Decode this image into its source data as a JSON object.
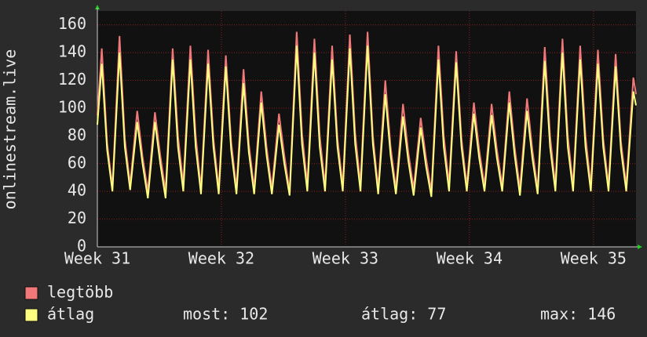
{
  "chart_data": {
    "type": "line",
    "y_label": "onlinestream.live",
    "xlim": [
      0,
      30.4
    ],
    "xticks": [
      {
        "value": 0,
        "label": "Week 31"
      },
      {
        "value": 7,
        "label": "Week 32"
      },
      {
        "value": 14,
        "label": "Week 33"
      },
      {
        "value": 21,
        "label": "Week 34"
      },
      {
        "value": 28,
        "label": "Week 35"
      }
    ],
    "ylim": [
      0,
      170
    ],
    "yticks": [
      0,
      20,
      40,
      60,
      80,
      100,
      120,
      140,
      160
    ],
    "grid": true,
    "x": [
      0,
      0.25,
      0.55,
      0.85,
      1.25,
      1.55,
      1.85,
      2.25,
      2.55,
      2.85,
      3.25,
      3.55,
      3.85,
      4.25,
      4.55,
      4.85,
      5.25,
      5.55,
      5.85,
      6.25,
      6.55,
      6.85,
      7.25,
      7.55,
      7.85,
      8.25,
      8.55,
      8.85,
      9.25,
      9.55,
      9.85,
      10.25,
      10.55,
      10.85,
      11.25,
      11.55,
      11.85,
      12.25,
      12.55,
      12.85,
      13.25,
      13.55,
      13.85,
      14.25,
      14.55,
      14.85,
      15.25,
      15.55,
      15.85,
      16.25,
      16.55,
      16.85,
      17.25,
      17.55,
      17.85,
      18.25,
      18.55,
      18.85,
      19.25,
      19.55,
      19.85,
      20.25,
      20.55,
      20.85,
      21.25,
      21.55,
      21.85,
      22.25,
      22.55,
      22.85,
      23.25,
      23.55,
      23.85,
      24.25,
      24.55,
      24.85,
      25.25,
      25.55,
      25.85,
      26.25,
      26.55,
      26.85,
      27.25,
      27.55,
      27.85,
      28.25,
      28.55,
      28.85,
      29.25,
      29.55,
      29.85,
      30.25,
      30.4
    ],
    "series": [
      {
        "name": "legtöbb",
        "color": "#f07878",
        "values": [
          95,
          143,
          75,
          43,
          152,
          78,
          45,
          98,
          65,
          40,
          97,
          66,
          40,
          143,
          80,
          45,
          145,
          80,
          42,
          142,
          78,
          42,
          138,
          76,
          42,
          128,
          74,
          42,
          112,
          72,
          42,
          96,
          66,
          40,
          155,
          82,
          45,
          150,
          80,
          44,
          145,
          78,
          44,
          153,
          82,
          45,
          155,
          80,
          42,
          120,
          72,
          42,
          103,
          68,
          42,
          93,
          64,
          40,
          145,
          80,
          45,
          141,
          78,
          44,
          104,
          70,
          44,
          103,
          70,
          44,
          112,
          72,
          42,
          107,
          70,
          42,
          144,
          80,
          44,
          150,
          80,
          44,
          145,
          80,
          44,
          142,
          78,
          44,
          139,
          76,
          44,
          122,
          110
        ]
      },
      {
        "name": "átlag",
        "color": "#ffff80",
        "values": [
          88,
          132,
          70,
          40,
          140,
          72,
          41,
          90,
          60,
          35,
          90,
          60,
          35,
          135,
          72,
          40,
          135,
          72,
          38,
          132,
          72,
          38,
          130,
          70,
          38,
          118,
          68,
          38,
          104,
          66,
          38,
          88,
          60,
          37,
          145,
          74,
          40,
          140,
          72,
          40,
          135,
          72,
          40,
          143,
          74,
          40,
          145,
          74,
          38,
          110,
          66,
          38,
          94,
          62,
          37,
          86,
          58,
          36,
          135,
          72,
          40,
          133,
          72,
          40,
          96,
          64,
          40,
          95,
          64,
          40,
          104,
          66,
          37,
          98,
          64,
          38,
          134,
          72,
          40,
          140,
          72,
          40,
          135,
          72,
          40,
          132,
          72,
          40,
          130,
          70,
          40,
          112,
          102
        ]
      }
    ],
    "stats": [
      "most: 102",
      "átlag: 77",
      "max: 146"
    ]
  }
}
